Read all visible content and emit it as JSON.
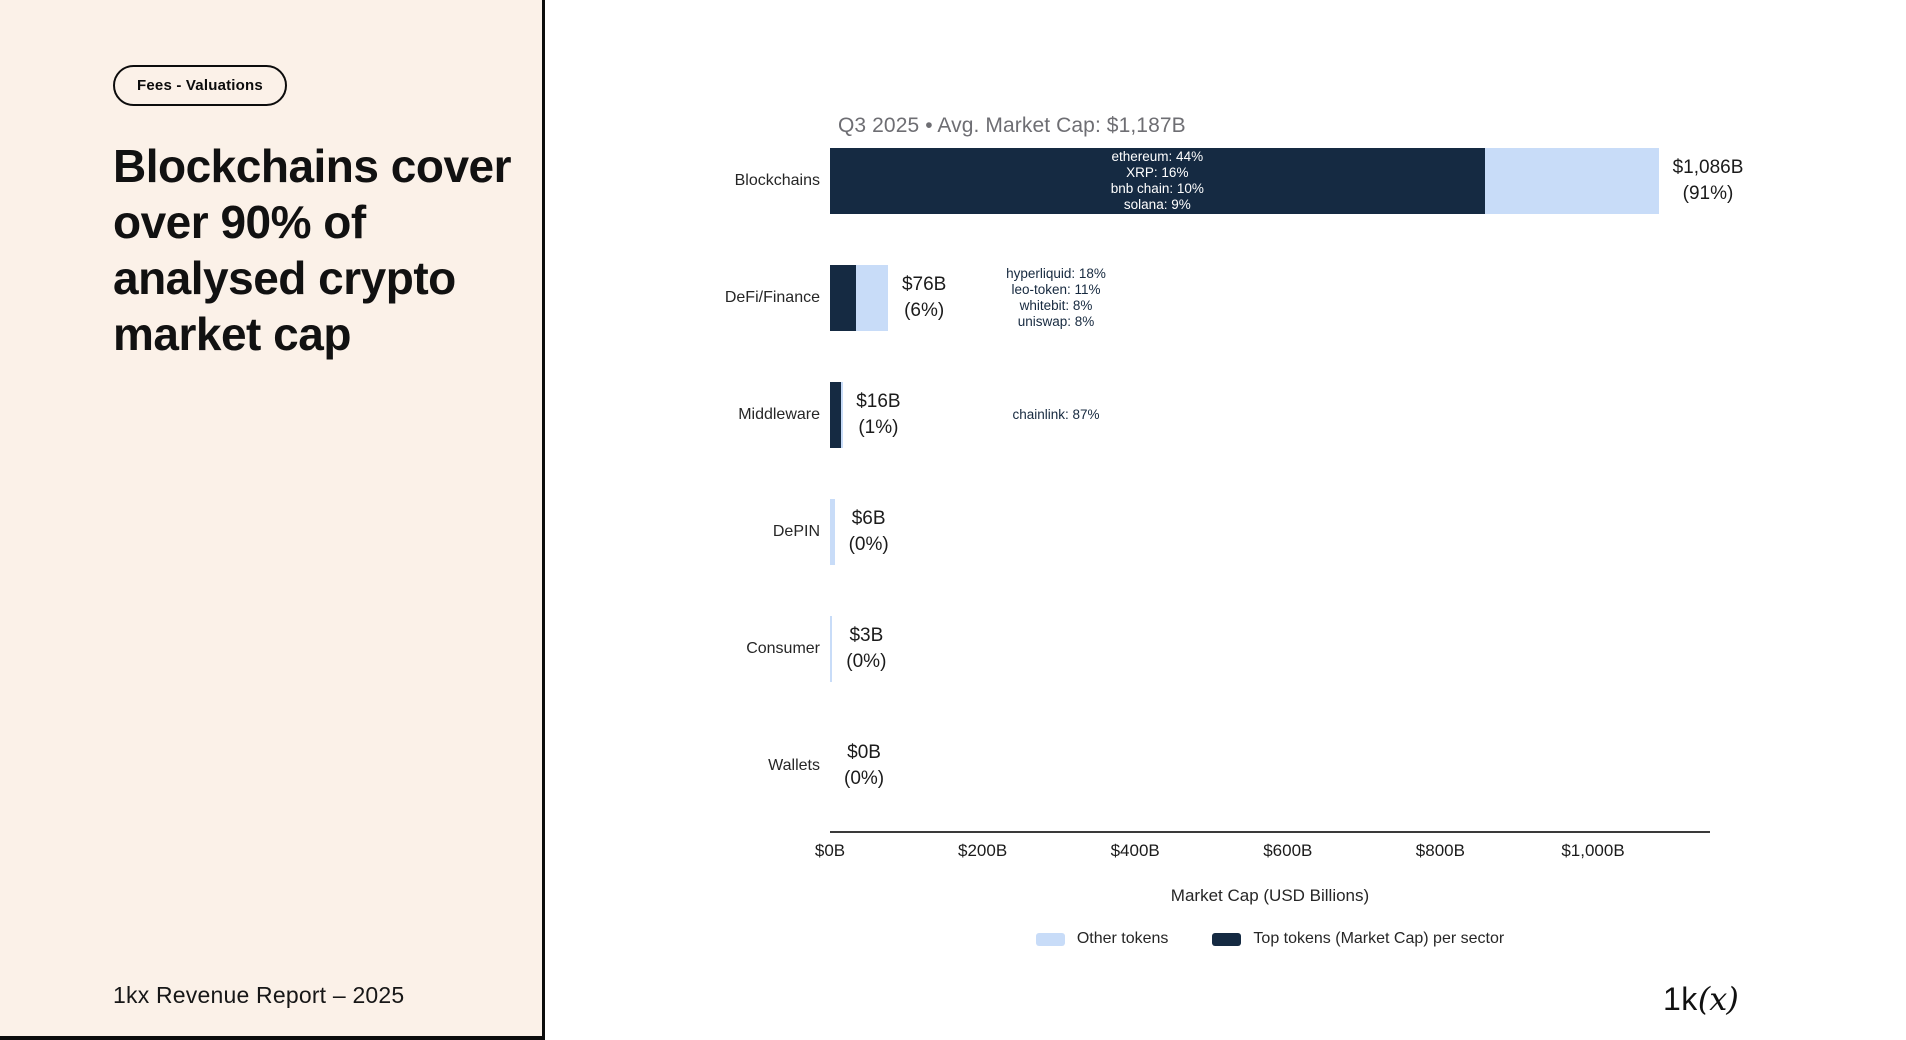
{
  "slide": {
    "badge": "Fees - Valuations",
    "title": "Blockchains cover over 90% of analysed crypto market cap",
    "footer": "1kx Revenue Report  – 2025",
    "logo_prefix": "1k",
    "logo_suffix": "(x)"
  },
  "colors": {
    "panel_bg": "#FBF1E8",
    "navy": "#152A42",
    "light_blue": "#C8DCF8"
  },
  "chart_data": {
    "type": "bar",
    "orientation": "horizontal",
    "title": "Q3 2025 • Avg. Market Cap: $1,187B",
    "xlabel": "Market Cap (USD Billions)",
    "xlim": [
      0,
      1150
    ],
    "x_ticks": {
      "labels": [
        "$0B",
        "$200B",
        "$400B",
        "$600B",
        "$800B",
        "$1,000B"
      ],
      "values": [
        0,
        200,
        400,
        600,
        800,
        1000
      ]
    },
    "grid": false,
    "legend_position": "bottom",
    "rows": [
      {
        "category": "Blockchains",
        "total_b": 1086,
        "value_label": "$1,086B",
        "pct_label": "(91%)",
        "top_tokens_b": 858,
        "other_tokens_b": 228,
        "top_tokens": [
          "ethereum: 44%",
          "XRP: 16%",
          "bnb chain: 10%",
          "solana: 9%"
        ],
        "annotation_inside_bar": true
      },
      {
        "category": "DeFi/Finance",
        "total_b": 76,
        "value_label": "$76B",
        "pct_label": "(6%)",
        "top_tokens_b": 34,
        "other_tokens_b": 42,
        "top_tokens": [
          "hyperliquid: 18%",
          "leo-token: 11%",
          "whitebit: 8%",
          "uniswap: 8%"
        ],
        "annotation_inside_bar": false
      },
      {
        "category": "Middleware",
        "total_b": 16,
        "value_label": "$16B",
        "pct_label": "(1%)",
        "top_tokens_b": 14,
        "other_tokens_b": 2,
        "top_tokens": [
          "chainlink: 87%"
        ],
        "annotation_inside_bar": false
      },
      {
        "category": "DePIN",
        "total_b": 6,
        "value_label": "$6B",
        "pct_label": "(0%)",
        "top_tokens_b": 0,
        "other_tokens_b": 6,
        "top_tokens": [],
        "annotation_inside_bar": false
      },
      {
        "category": "Consumer",
        "total_b": 3,
        "value_label": "$3B",
        "pct_label": "(0%)",
        "top_tokens_b": 0,
        "other_tokens_b": 3,
        "top_tokens": [],
        "annotation_inside_bar": false
      },
      {
        "category": "Wallets",
        "total_b": 0,
        "value_label": "$0B",
        "pct_label": "(0%)",
        "top_tokens_b": 0,
        "other_tokens_b": 0,
        "top_tokens": [],
        "annotation_inside_bar": false
      }
    ],
    "legend": [
      {
        "label": "Other tokens",
        "color": "#C8DCF8"
      },
      {
        "label": "Top tokens (Market Cap) per sector",
        "color": "#152A42"
      }
    ]
  }
}
